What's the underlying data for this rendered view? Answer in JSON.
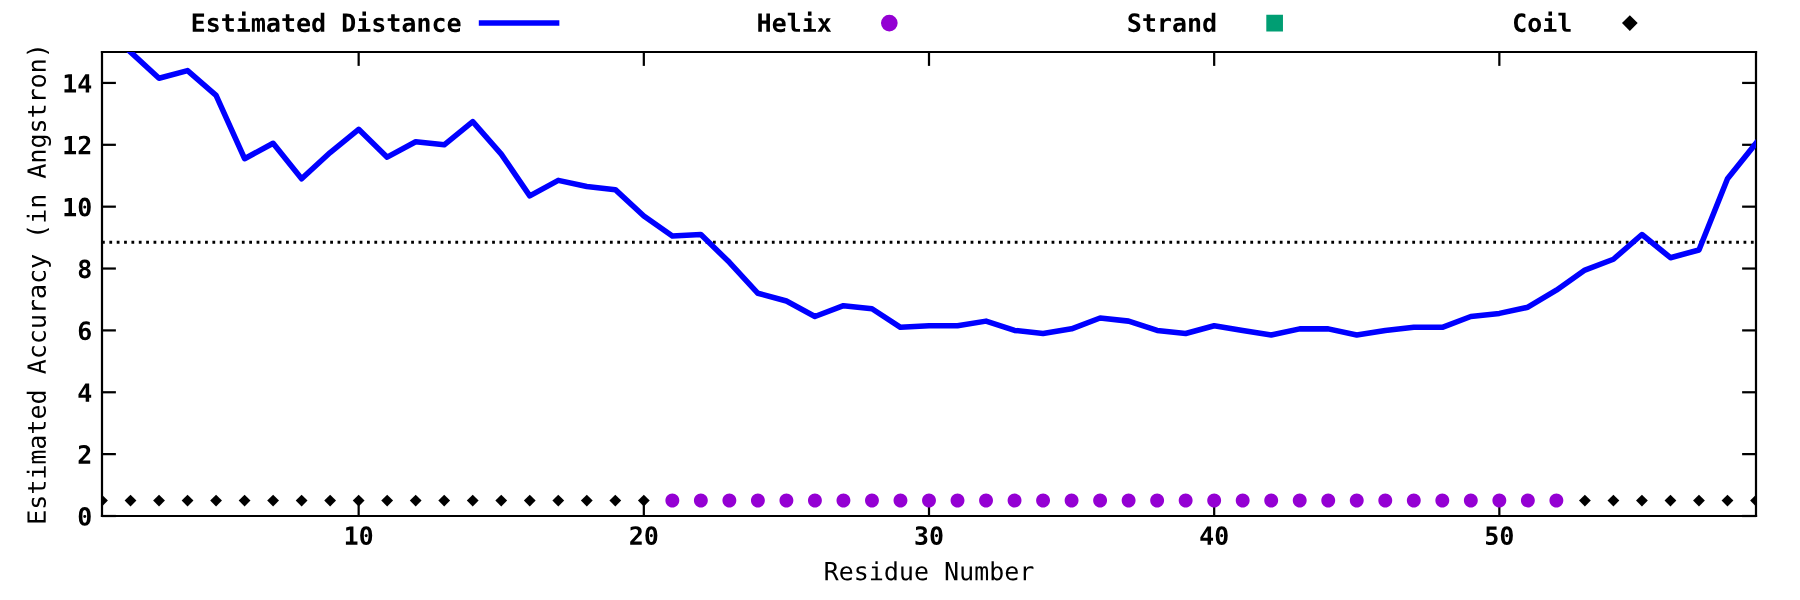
{
  "chart_data": {
    "type": "line",
    "xlabel": "Residue Number",
    "ylabel": "Estimated Accuracy (in Angstron)",
    "xlim": [
      1,
      59
    ],
    "ylim": [
      0,
      15
    ],
    "xticks": [
      10,
      20,
      30,
      40,
      50
    ],
    "yticks": [
      0,
      2,
      4,
      6,
      8,
      10,
      12,
      14
    ],
    "grid": false,
    "legend": "top",
    "ref_lines": [
      {
        "axis": "y",
        "value": 8.85,
        "line_style": "dotted",
        "color": "#000000"
      }
    ],
    "series": [
      {
        "name": "Estimated Distance",
        "color": "#0000ff",
        "marker": "none",
        "x": [
          2,
          3,
          4,
          5,
          6,
          7,
          8,
          9,
          10,
          11,
          12,
          13,
          14,
          15,
          16,
          17,
          18,
          19,
          20,
          21,
          22,
          23,
          24,
          25,
          26,
          27,
          28,
          29,
          30,
          31,
          32,
          33,
          34,
          35,
          36,
          37,
          38,
          39,
          40,
          41,
          42,
          43,
          44,
          45,
          46,
          47,
          48,
          49,
          50,
          51,
          52,
          53,
          54,
          55,
          56,
          57,
          58,
          59
        ],
        "values": [
          15,
          14.15,
          14.4,
          13.6,
          11.55,
          12.05,
          10.9,
          11.75,
          12.5,
          11.6,
          12.1,
          12.0,
          12.75,
          11.7,
          10.35,
          10.85,
          10.65,
          10.55,
          9.7,
          9.05,
          9.1,
          8.2,
          7.2,
          6.95,
          6.45,
          6.8,
          6.7,
          6.1,
          6.15,
          6.15,
          6.3,
          6.0,
          5.9,
          6.05,
          6.4,
          6.3,
          6.0,
          5.9,
          6.15,
          6.0,
          5.85,
          6.05,
          6.05,
          5.85,
          6.0,
          6.1,
          6.1,
          6.45,
          6.55,
          6.75,
          7.3,
          7.95,
          8.3,
          9.1,
          8.35,
          8.6,
          10.9,
          12.05
        ]
      },
      {
        "name": "Helix",
        "type": "scatter",
        "color": "#9400d3",
        "marker": "circle",
        "x": [
          21,
          22,
          23,
          24,
          25,
          26,
          27,
          28,
          29,
          30,
          31,
          32,
          33,
          34,
          35,
          36,
          37,
          38,
          39,
          40,
          41,
          42,
          43,
          44,
          45,
          46,
          47,
          48,
          49,
          50,
          51,
          52
        ],
        "values": [
          0.5,
          0.5,
          0.5,
          0.5,
          0.5,
          0.5,
          0.5,
          0.5,
          0.5,
          0.5,
          0.5,
          0.5,
          0.5,
          0.5,
          0.5,
          0.5,
          0.5,
          0.5,
          0.5,
          0.5,
          0.5,
          0.5,
          0.5,
          0.5,
          0.5,
          0.5,
          0.5,
          0.5,
          0.5,
          0.5,
          0.5,
          0.5
        ]
      },
      {
        "name": "Strand",
        "type": "scatter",
        "color": "#009e73",
        "marker": "square"
      },
      {
        "name": "Coil",
        "type": "scatter",
        "color": "#000000",
        "marker": "diamond",
        "x": [
          1,
          2,
          3,
          4,
          5,
          6,
          7,
          8,
          9,
          10,
          11,
          12,
          13,
          14,
          15,
          16,
          17,
          18,
          19,
          20,
          53,
          54,
          55,
          56,
          57,
          58,
          59
        ],
        "values": [
          0.5,
          0.5,
          0.5,
          0.5,
          0.5,
          0.5,
          0.5,
          0.5,
          0.5,
          0.5,
          0.5,
          0.5,
          0.5,
          0.5,
          0.5,
          0.5,
          0.5,
          0.5,
          0.5,
          0.5,
          0.5,
          0.5,
          0.5,
          0.5,
          0.5,
          0.5,
          0.5
        ]
      }
    ]
  }
}
